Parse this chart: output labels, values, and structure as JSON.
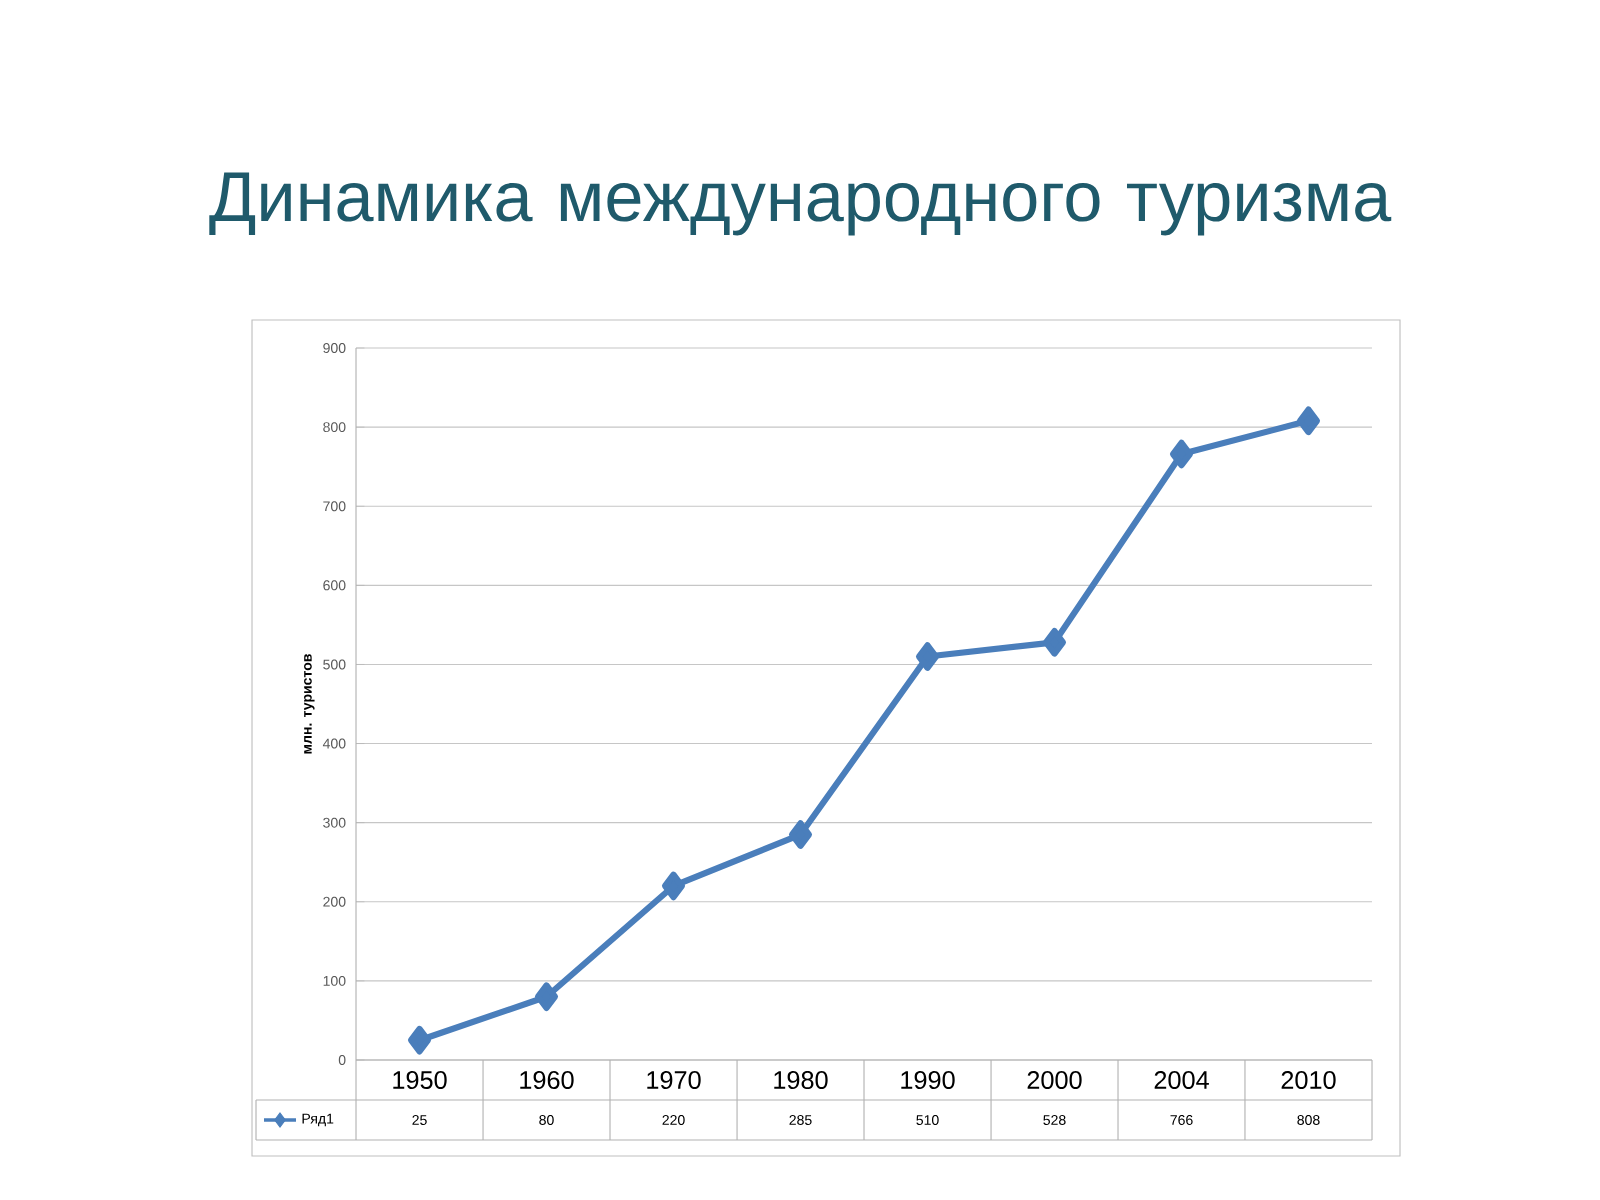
{
  "chart_data": {
    "type": "line",
    "title": "Динамика международного туризма",
    "ylabel": "млн. туристов",
    "categories": [
      "1950",
      "1960",
      "1970",
      "1980",
      "1990",
      "2000",
      "2004",
      "2010"
    ],
    "series": [
      {
        "name": "Ряд1",
        "color": "#4a7ebb",
        "values": [
          25,
          80,
          220,
          285,
          510,
          528,
          766,
          808
        ]
      }
    ],
    "ylim": [
      0,
      900
    ],
    "yticks": [
      0,
      100,
      200,
      300,
      400,
      500,
      600,
      700,
      800,
      900
    ],
    "grid": "y",
    "marker": "diamond",
    "line_style": "solid",
    "data_labels": true,
    "legend": "bottom left"
  }
}
